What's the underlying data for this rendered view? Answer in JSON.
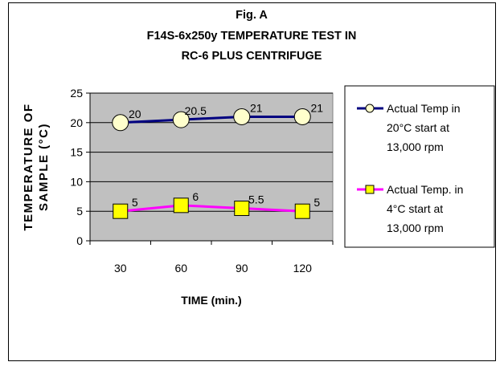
{
  "chart_data": {
    "type": "line",
    "title_lines": [
      "Fig. A",
      "F14S-6x250y TEMPERATURE TEST IN",
      "RC-6 PLUS CENTRIFUGE"
    ],
    "xlabel": "TIME (min.)",
    "ylabel_lines": [
      "TEMPERATURE OF",
      "SAMPLE (°C)"
    ],
    "categories": [
      "30",
      "60",
      "90",
      "120"
    ],
    "ylim": [
      0,
      25
    ],
    "yticks": [
      "0",
      "5",
      "10",
      "15",
      "20",
      "25"
    ],
    "grid": true,
    "legend_position": "right",
    "series": [
      {
        "name_lines": [
          "Actual Temp in",
          "20°C start at",
          "13,000 rpm"
        ],
        "values": [
          20,
          20.5,
          21,
          21
        ],
        "labels": [
          "20",
          "20.5",
          "21",
          "21"
        ],
        "line_color": "#000080",
        "marker": "circle",
        "marker_fill": "#ffffcc"
      },
      {
        "name_lines": [
          "Actual Temp. in",
          "4°C start at",
          "13,000 rpm"
        ],
        "values": [
          5,
          6,
          5.5,
          5
        ],
        "labels": [
          "5",
          "6",
          "5.5",
          "5"
        ],
        "line_color": "#ff00ff",
        "marker": "square",
        "marker_fill": "#ffff00"
      }
    ],
    "plot_background": "#c0c0c0"
  }
}
